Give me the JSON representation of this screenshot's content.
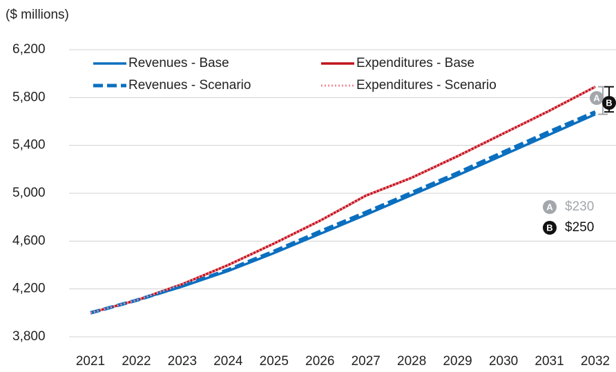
{
  "chart_data": {
    "type": "line",
    "y_label": "($ millions)",
    "categories": [
      "2021",
      "2022",
      "2023",
      "2024",
      "2025",
      "2026",
      "2027",
      "2028",
      "2029",
      "2030",
      "2031",
      "2032"
    ],
    "series": [
      {
        "name": "Revenues - Base",
        "color": "#0b6fbf",
        "style": "solid",
        "values": [
          4000,
          4105,
          4220,
          4350,
          4500,
          4660,
          4820,
          4985,
          5150,
          5320,
          5490,
          5660
        ]
      },
      {
        "name": "Expenditures - Base",
        "color": "#c0141c",
        "style": "solid",
        "values": [
          4000,
          4105,
          4240,
          4400,
          4580,
          4770,
          4980,
          5130,
          5310,
          5500,
          5690,
          5890
        ]
      },
      {
        "name": "Revenues - Scenario",
        "color": "#0b6fbf",
        "style": "dashed",
        "values": [
          4000,
          4105,
          4225,
          4360,
          4515,
          4680,
          4840,
          5005,
          5170,
          5345,
          5515,
          5680
        ]
      },
      {
        "name": "Expenditures - Scenario",
        "color": "#f28b9b",
        "style": "dotted",
        "values": [
          4000,
          4105,
          4240,
          4400,
          4580,
          4770,
          4980,
          5130,
          5310,
          5500,
          5690,
          5890
        ]
      }
    ],
    "ylim": [
      3800,
      6200
    ],
    "yticks": [
      {
        "value": 3800,
        "label": "3,800"
      },
      {
        "value": 4200,
        "label": "4,200"
      },
      {
        "value": 4600,
        "label": "4,600"
      },
      {
        "value": 5000,
        "label": "5,000"
      },
      {
        "value": 5400,
        "label": "5,400"
      },
      {
        "value": 5800,
        "label": "5,800"
      },
      {
        "value": 6200,
        "label": "6,200"
      }
    ],
    "grid": true,
    "annotations": [
      {
        "badge": "A",
        "text": "$230",
        "color": "#a3a7ab"
      },
      {
        "badge": "B",
        "text": "$250",
        "color": "#111111"
      }
    ]
  }
}
